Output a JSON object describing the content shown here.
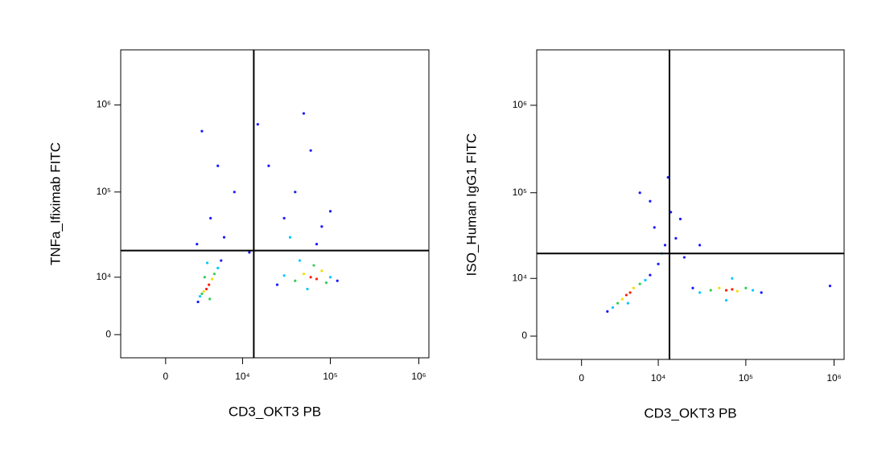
{
  "chart_data": [
    {
      "type": "scatter",
      "xlabel": "CD3_OKT3 PB",
      "ylabel": "TNFa_Ifiximab FITC",
      "xscale": "arcsinh",
      "yscale": "arcsinh",
      "xlim": [
        -4000,
        1300000
      ],
      "ylim": [
        -3000,
        4300000
      ],
      "xticks": [
        0,
        {
          "value": 10000,
          "label": "10⁴"
        },
        {
          "value": 100000,
          "label": "10⁵"
        },
        {
          "value": 1000000,
          "label": "10⁶"
        }
      ],
      "yticks": [
        0,
        {
          "value": 10000,
          "label": "10⁴"
        },
        {
          "value": 100000,
          "label": "10⁵"
        },
        {
          "value": 1000000,
          "label": "10⁶"
        }
      ],
      "gate_x": 13500,
      "gate_y": 21000,
      "x": [
        3500,
        3800,
        3200,
        4200,
        3000,
        4500,
        2800,
        5000,
        3600,
        2600,
        5500,
        3900,
        3300,
        60000,
        70000,
        50000,
        80000,
        40000,
        90000,
        30000,
        100000,
        25000,
        120000,
        55000,
        65000,
        45000,
        4000,
        5000,
        3000,
        6000,
        8000,
        2500,
        40000,
        60000,
        30000,
        80000,
        50000,
        20000,
        100000,
        70000,
        35000,
        12000,
        15000
      ],
      "y": [
        7000,
        8000,
        6500,
        9500,
        6000,
        11000,
        5500,
        13000,
        15000,
        4500,
        16000,
        5000,
        10000,
        10000,
        9500,
        11000,
        12000,
        9000,
        8500,
        10500,
        10000,
        8000,
        9000,
        7000,
        14000,
        16000,
        50000,
        200000,
        500000,
        30000,
        100000,
        25000,
        100000,
        300000,
        50000,
        40000,
        800000,
        200000,
        60000,
        25000,
        30000,
        20000,
        600000
      ],
      "colors": [
        "#ff2000",
        "#ff2000",
        "#f0e000",
        "#f0e000",
        "#30d050",
        "#30d050",
        "#00c8ff",
        "#00c8ff",
        "#00c8ff",
        "#1a1aff",
        "#1a1aff",
        "#30d050",
        "#30d050",
        "#ff2000",
        "#ff2000",
        "#f0e000",
        "#f0e000",
        "#30d050",
        "#30d050",
        "#00c8ff",
        "#00c8ff",
        "#1a1aff",
        "#1a1aff",
        "#00c8ff",
        "#30d050",
        "#00c8ff",
        "#1a1aff",
        "#1a1aff",
        "#1a1aff",
        "#1a1aff",
        "#1a1aff",
        "#1a1aff",
        "#1a1aff",
        "#1a1aff",
        "#1a1aff",
        "#1a1aff",
        "#1a1aff",
        "#1a1aff",
        "#1a1aff",
        "#1a1aff",
        "#00c8ff",
        "#1a1aff",
        "#1a1aff"
      ]
    },
    {
      "type": "scatter",
      "xlabel": "CD3_OKT3 PB",
      "ylabel": "ISO_Human IgG1 FITC",
      "xscale": "arcsinh",
      "yscale": "arcsinh",
      "xlim": [
        -4000,
        1300000
      ],
      "ylim": [
        -3000,
        4300000
      ],
      "xticks": [
        0,
        {
          "value": 10000,
          "label": "10⁴"
        },
        {
          "value": 100000,
          "label": "10⁵"
        },
        {
          "value": 1000000,
          "label": "10⁶"
        }
      ],
      "yticks": [
        0,
        {
          "value": 10000,
          "label": "10⁴"
        },
        {
          "value": 100000,
          "label": "10⁵"
        },
        {
          "value": 1000000,
          "label": "10⁶"
        }
      ],
      "gate_x": 13500,
      "gate_y": 20000,
      "x": [
        4000,
        4500,
        3500,
        5000,
        3000,
        6000,
        2500,
        7000,
        2000,
        8000,
        4200,
        60000,
        70000,
        50000,
        80000,
        40000,
        100000,
        30000,
        120000,
        25000,
        150000,
        60000,
        70000,
        10000,
        12000,
        9000,
        14000,
        11000,
        16000,
        8000,
        13000,
        20000,
        30000,
        6000,
        18000,
        900000
      ],
      "y": [
        6000,
        6500,
        5200,
        7500,
        4500,
        8500,
        3800,
        9500,
        3200,
        11000,
        4500,
        7000,
        7200,
        7500,
        6800,
        7000,
        7500,
        6500,
        7000,
        7500,
        6500,
        5000,
        10000,
        15000,
        25000,
        40000,
        60000,
        20000,
        30000,
        80000,
        150000,
        18000,
        25000,
        100000,
        50000,
        8000
      ],
      "colors": [
        "#ff2000",
        "#ff2000",
        "#f0e000",
        "#f0e000",
        "#30d050",
        "#30d050",
        "#00c8ff",
        "#00c8ff",
        "#1a1aff",
        "#1a1aff",
        "#00c8ff",
        "#ff2000",
        "#ff2000",
        "#f0e000",
        "#f0e000",
        "#30d050",
        "#30d050",
        "#00c8ff",
        "#00c8ff",
        "#1a1aff",
        "#1a1aff",
        "#00c8ff",
        "#00c8ff",
        "#1a1aff",
        "#1a1aff",
        "#1a1aff",
        "#1a1aff",
        "#00c8ff",
        "#1a1aff",
        "#1a1aff",
        "#1a1aff",
        "#1a1aff",
        "#1a1aff",
        "#1a1aff",
        "#1a1aff",
        "#1a1aff"
      ]
    }
  ]
}
